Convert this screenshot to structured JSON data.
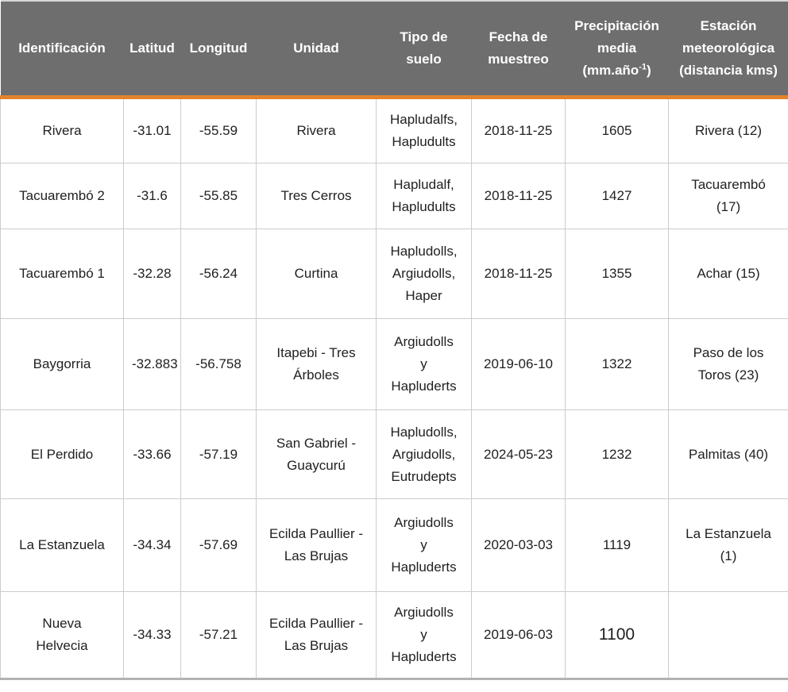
{
  "colors": {
    "header_background": "#6e6e6e",
    "header_text": "#ffffff",
    "accent_orange_rule": "#e2832e",
    "grid_line": "#cccccc",
    "bottom_border": "#b3b3b3",
    "body_text": "#212121"
  },
  "table": {
    "columns": {
      "identificacion": "Identificación",
      "latitud": "Latitud",
      "longitud": "Longitud",
      "unidad": "Unidad",
      "tipo_suelo": "Tipo de\nsuelo",
      "fecha_muestreo": "Fecha de\nmuestreo",
      "precipitacion_pre": "Precipitación\nmedia\n(mm.año",
      "precipitacion_sup": "-1",
      "precipitacion_post": ")",
      "estacion": "Estación\nmeteorológica\n(distancia kms)"
    },
    "rows": [
      {
        "identificacion": "Rivera",
        "latitud": "-31.01",
        "longitud": "-55.59",
        "unidad": "Rivera",
        "tipo_suelo": "Hapludalfs,\nHapludults",
        "fecha_muestreo": "2018-11-25",
        "precipitacion": "1605",
        "estacion": "Rivera (12)"
      },
      {
        "identificacion": "Tacuarembó 2",
        "latitud": "-31.6",
        "longitud": "-55.85",
        "unidad": "Tres Cerros",
        "tipo_suelo": "Hapludalf,\nHapludults",
        "fecha_muestreo": "2018-11-25",
        "precipitacion": "1427",
        "estacion": "Tacuarembó\n(17)"
      },
      {
        "identificacion": "Tacuarembó 1",
        "latitud": "-32.28",
        "longitud": "-56.24",
        "unidad": "Curtina",
        "tipo_suelo": "Hapludolls,\nArgiudolls,\nHaper",
        "fecha_muestreo": "2018-11-25",
        "precipitacion": "1355",
        "estacion": "Achar (15)"
      },
      {
        "identificacion": "Baygorria",
        "latitud": "-32.883",
        "longitud": "-56.758",
        "unidad": "Itapebi - Tres\nÁrboles",
        "tipo_suelo": "Argiudolls\ny\nHapluderts",
        "fecha_muestreo": "2019-06-10",
        "precipitacion": "1322",
        "estacion": "Paso de los\nToros (23)"
      },
      {
        "identificacion": "El Perdido",
        "latitud": "-33.66",
        "longitud": "-57.19",
        "unidad": "San Gabriel -\nGuaycurú",
        "tipo_suelo": "Hapludolls,\nArgiudolls,\nEutrudepts",
        "fecha_muestreo": "2024-05-23",
        "precipitacion": "1232",
        "estacion": "Palmitas (40)"
      },
      {
        "identificacion": "La Estanzuela",
        "latitud": "-34.34",
        "longitud": "-57.69",
        "unidad": "Ecilda Paullier -\nLas Brujas",
        "tipo_suelo": "Argiudolls\ny\nHapluderts",
        "fecha_muestreo": "2020-03-03",
        "precipitacion": "1119",
        "estacion": "La Estanzuela\n(1)"
      },
      {
        "identificacion": "Nueva\nHelvecia",
        "latitud": "-34.33",
        "longitud": "-57.21",
        "unidad": "Ecilda Paullier -\nLas Brujas",
        "tipo_suelo": "Argiudolls\ny\nHapluderts",
        "fecha_muestreo": "2019-06-03",
        "precipitacion": "1100",
        "estacion": ""
      }
    ]
  }
}
